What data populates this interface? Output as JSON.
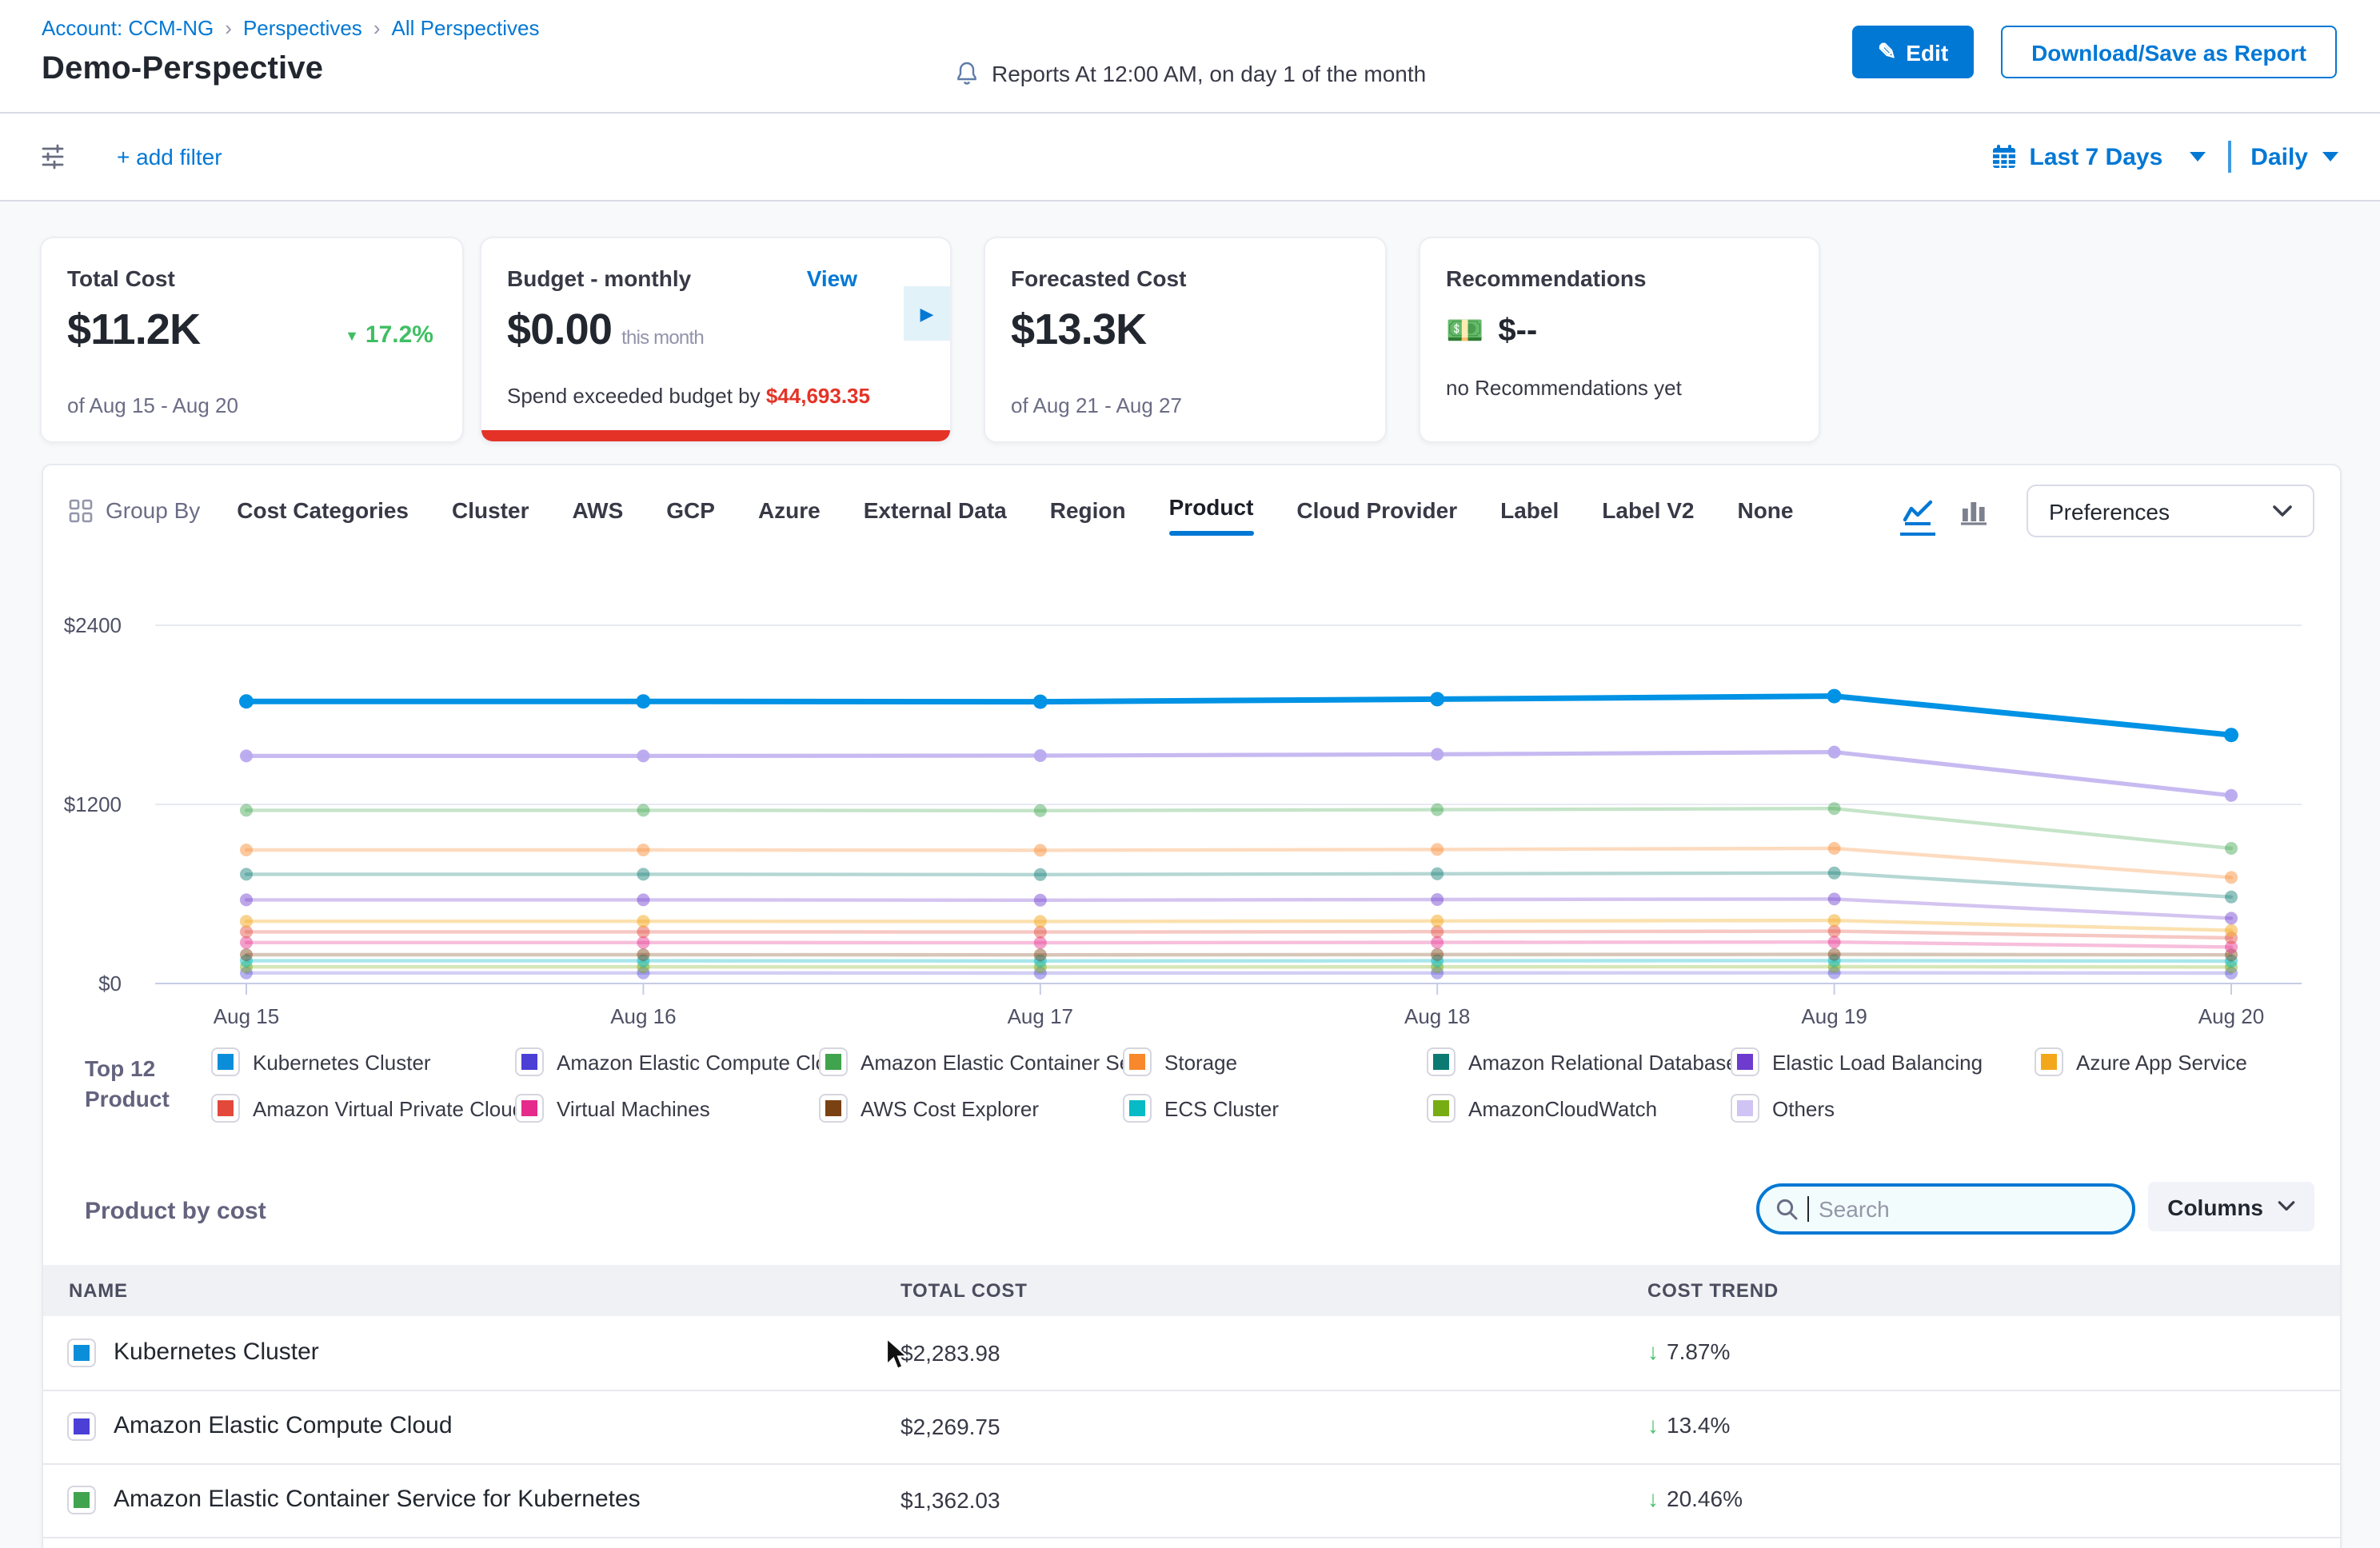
{
  "header": {
    "breadcrumb": {
      "account": "Account: CCM-NG",
      "perspectives": "Perspectives",
      "all": "All Perspectives",
      "separator": "›"
    },
    "title": "Demo-Perspective",
    "reports": "Reports At 12:00 AM, on day 1 of the month",
    "edit_label": "Edit",
    "edit_icon": "✎",
    "download_label": "Download/Save as Report"
  },
  "filter_bar": {
    "add_filter": "+ add filter",
    "date_range": "Last 7 Days",
    "granularity": "Daily"
  },
  "cards": {
    "total_cost": {
      "title": "Total Cost",
      "value": "$11.2K",
      "delta_icon": "▼",
      "delta": "17.2%",
      "period": "of Aug 15 - Aug 20"
    },
    "budget": {
      "title": "Budget - monthly",
      "view": "View",
      "value": "$0.00",
      "value_suffix": "this month",
      "exceeded_prefix": "Spend exceeded budget by ",
      "exceeded_amount": "$44,693.35",
      "expand_icon": "▶"
    },
    "forecasted": {
      "title": "Forecasted Cost",
      "value": "$13.3K",
      "period": "of Aug 21 - Aug 27"
    },
    "recommendations": {
      "title": "Recommendations",
      "emoji": "💵",
      "value": "$--",
      "subtitle": "no Recommendations yet"
    }
  },
  "group_by": {
    "label": "Group By",
    "tabs": [
      {
        "label": "Cost Categories"
      },
      {
        "label": "Cluster"
      },
      {
        "label": "AWS"
      },
      {
        "label": "GCP"
      },
      {
        "label": "Azure"
      },
      {
        "label": "External Data"
      },
      {
        "label": "Region"
      },
      {
        "label": "Product",
        "selected": true
      },
      {
        "label": "Cloud Provider"
      },
      {
        "label": "Label"
      },
      {
        "label": "Label V2"
      },
      {
        "label": "None"
      }
    ],
    "preferences_label": "Preferences"
  },
  "chart_data": {
    "type": "line",
    "x": [
      "Aug 15",
      "Aug 16",
      "Aug 17",
      "Aug 18",
      "Aug 19",
      "Aug 20"
    ],
    "ylim": [
      0,
      2400
    ],
    "yticks": [
      "$0",
      "$1200",
      "$2400"
    ],
    "grid": true,
    "legend_position": "bottom",
    "series": [
      {
        "name": "Kubernetes Cluster",
        "color": "#0092e4",
        "opacity": 1,
        "values": [
          1890,
          1890,
          1888,
          1905,
          1925,
          1665
        ]
      },
      {
        "name": "Others",
        "color": "#b9a9ee",
        "opacity": 0.8,
        "values": [
          1525,
          1525,
          1527,
          1535,
          1550,
          1260
        ]
      },
      {
        "name": "Amazon Elastic Container Service for Kubernetes",
        "color": "#3fa44d",
        "opacity": 0.3,
        "values": [
          1160,
          1160,
          1158,
          1165,
          1172,
          905
        ]
      },
      {
        "name": "Storage",
        "color": "#f8882b",
        "opacity": 0.3,
        "values": [
          895,
          895,
          893,
          898,
          905,
          710
        ]
      },
      {
        "name": "Amazon Relational Database Service",
        "color": "#0b7b72",
        "opacity": 0.3,
        "values": [
          732,
          732,
          730,
          735,
          740,
          580
        ]
      },
      {
        "name": "Elastic Load Balancing",
        "color": "#6d3bce",
        "opacity": 0.3,
        "values": [
          560,
          560,
          558,
          562,
          566,
          437
        ]
      },
      {
        "name": "Azure App Service",
        "color": "#f3a81c",
        "opacity": 0.35,
        "values": [
          417,
          417,
          416,
          419,
          422,
          356
        ]
      },
      {
        "name": "Amazon Virtual Private Cloud",
        "color": "#e2493b",
        "opacity": 0.3,
        "values": [
          346,
          346,
          345,
          347,
          350,
          305
        ]
      },
      {
        "name": "Virtual Machines",
        "color": "#e52a8c",
        "opacity": 0.3,
        "values": [
          274,
          274,
          273,
          275,
          277,
          244
        ]
      },
      {
        "name": "AWS Cost Explorer",
        "color": "#7a4113",
        "opacity": 0.3,
        "values": [
          193,
          193,
          192,
          194,
          195,
          192
        ]
      },
      {
        "name": "ECS Cluster",
        "color": "#06bac6",
        "opacity": 0.35,
        "values": [
          152,
          152,
          151,
          152,
          153,
          150
        ]
      },
      {
        "name": "AmazonCloudWatch",
        "color": "#77ac13",
        "opacity": 0.3,
        "values": [
          111,
          111,
          110,
          111,
          112,
          110
        ]
      },
      {
        "name": "Amazon Elastic Compute Cloud",
        "color": "#4b3fd6",
        "opacity": 0.25,
        "values": [
          71,
          71,
          70,
          71,
          72,
          70
        ]
      }
    ]
  },
  "legend": {
    "title_line1": "Top 12",
    "title_line2": "Product",
    "items": [
      {
        "label": "Kubernetes Cluster",
        "color": "#0b8ed9"
      },
      {
        "label": "Amazon Elastic Compute Clo...",
        "color": "#4b3fd6"
      },
      {
        "label": "Amazon Elastic Container Se...",
        "color": "#3fa44d"
      },
      {
        "label": "Storage",
        "color": "#f8882b"
      },
      {
        "label": "Amazon Relational Database ...",
        "color": "#0b7b72"
      },
      {
        "label": "Elastic Load Balancing",
        "color": "#6d3bce"
      },
      {
        "label": "Azure App Service",
        "color": "#f3a81c"
      },
      {
        "label": "Amazon Virtual Private Cloud",
        "color": "#e2493b"
      },
      {
        "label": "Virtual Machines",
        "color": "#e52a8c"
      },
      {
        "label": "AWS Cost Explorer",
        "color": "#7a4113"
      },
      {
        "label": "ECS Cluster",
        "color": "#06bac6"
      },
      {
        "label": "AmazonCloudWatch",
        "color": "#77ac13"
      },
      {
        "label": "Others",
        "color": "#cfc4f3"
      }
    ]
  },
  "table": {
    "section_title": "Product by cost",
    "search_placeholder": "Search",
    "columns_label": "Columns",
    "down_arrow": "↓",
    "headers": {
      "name": "NAME",
      "cost": "TOTAL COST",
      "trend": "COST TREND"
    },
    "rows": [
      {
        "name": "Kubernetes Cluster",
        "color": "#0b8ed9",
        "total": "$2,283.98",
        "trend": "7.87%"
      },
      {
        "name": "Amazon Elastic Compute Cloud",
        "color": "#4b3fd6",
        "total": "$2,269.75",
        "trend": "13.4%"
      },
      {
        "name": "Amazon Elastic Container Service for Kubernetes",
        "color": "#3fa44d",
        "total": "$1,362.03",
        "trend": "20.46%"
      }
    ]
  }
}
